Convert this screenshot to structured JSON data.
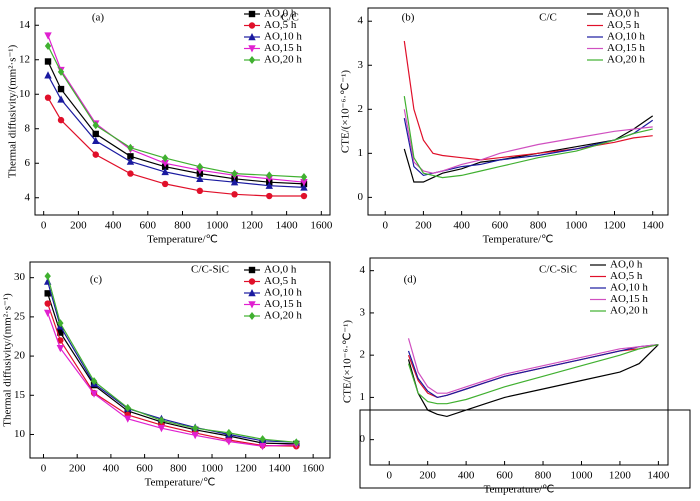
{
  "chart_data": [
    {
      "type": "line",
      "title": "C/C",
      "panel": "(a)",
      "xlabel": "Temperature/℃",
      "ylabel": "Thermal diffusivity/(mm²·s⁻¹)",
      "x": [
        25,
        100,
        300,
        500,
        700,
        900,
        1100,
        1300,
        1500
      ],
      "xlim": [
        -50,
        1650
      ],
      "xticks": [
        0,
        200,
        400,
        600,
        800,
        1000,
        1200,
        1400,
        1600
      ],
      "ylim": [
        3,
        15
      ],
      "yticks": [
        4,
        6,
        8,
        10,
        12,
        14
      ],
      "series": [
        {
          "name": "AO,0 h",
          "color": "#000000",
          "marker": "square",
          "values": [
            11.9,
            10.3,
            7.7,
            6.4,
            5.8,
            5.4,
            5.1,
            4.9,
            4.8
          ]
        },
        {
          "name": "AO,5 h",
          "color": "#e0102a",
          "marker": "circle",
          "values": [
            9.8,
            8.5,
            6.5,
            5.4,
            4.8,
            4.4,
            4.2,
            4.1,
            4.1
          ]
        },
        {
          "name": "AO,10 h",
          "color": "#1a1aa0",
          "marker": "triangle",
          "values": [
            11.1,
            9.7,
            7.3,
            6.1,
            5.5,
            5.1,
            4.9,
            4.7,
            4.6
          ]
        },
        {
          "name": "AO,15 h",
          "color": "#e020d0",
          "marker": "triangle-down",
          "values": [
            13.4,
            11.4,
            8.3,
            6.8,
            6.0,
            5.6,
            5.3,
            5.1,
            4.9
          ]
        },
        {
          "name": "AO,20 h",
          "color": "#40b030",
          "marker": "diamond",
          "values": [
            12.8,
            11.3,
            8.2,
            6.9,
            6.3,
            5.8,
            5.4,
            5.3,
            5.2
          ]
        }
      ]
    },
    {
      "type": "line",
      "title": "C/C",
      "panel": "(b)",
      "xlabel": "Temperature/℃",
      "ylabel": "CTE/(×10⁻⁶·℃⁻¹)",
      "x": [
        100,
        150,
        200,
        250,
        300,
        400,
        500,
        600,
        800,
        1000,
        1200,
        1300,
        1400
      ],
      "xlim": [
        -90,
        1480
      ],
      "xticks": [
        0,
        200,
        400,
        600,
        800,
        1000,
        1200,
        1400
      ],
      "ylim": [
        -0.4,
        4.3
      ],
      "yticks": [
        0,
        1,
        2,
        3,
        4
      ],
      "series": [
        {
          "name": "AO,0 h",
          "color": "#000000",
          "values": [
            1.1,
            0.35,
            0.35,
            0.45,
            0.55,
            0.65,
            0.8,
            0.85,
            1.0,
            1.15,
            1.3,
            1.55,
            1.85
          ]
        },
        {
          "name": "AO,5 h",
          "color": "#e0102a",
          "values": [
            3.55,
            2.0,
            1.3,
            1.0,
            0.95,
            0.9,
            0.85,
            0.9,
            1.0,
            1.1,
            1.25,
            1.35,
            1.4
          ]
        },
        {
          "name": "AO,10 h",
          "color": "#1a1aa0",
          "values": [
            1.8,
            0.7,
            0.5,
            0.55,
            0.6,
            0.7,
            0.75,
            0.85,
            0.95,
            1.1,
            1.3,
            1.45,
            1.75
          ]
        },
        {
          "name": "AO,15 h",
          "color": "#d050c0",
          "values": [
            2.0,
            0.8,
            0.6,
            0.55,
            0.6,
            0.75,
            0.85,
            1.0,
            1.2,
            1.35,
            1.5,
            1.55,
            1.6
          ]
        },
        {
          "name": "AO,20 h",
          "color": "#40b030",
          "values": [
            2.3,
            0.9,
            0.55,
            0.5,
            0.45,
            0.5,
            0.6,
            0.7,
            0.9,
            1.05,
            1.3,
            1.45,
            1.55
          ]
        }
      ]
    },
    {
      "type": "line",
      "title": "C/C-SiC",
      "panel": "(c)",
      "xlabel": "Temperature/℃",
      "ylabel": "Thermal diffusivity/(mm²·s⁻¹)",
      "x": [
        25,
        100,
        300,
        500,
        700,
        900,
        1100,
        1300,
        1500
      ],
      "xlim": [
        -80,
        1700
      ],
      "xticks": [
        0,
        200,
        400,
        600,
        800,
        1000,
        1200,
        1400,
        1600
      ],
      "ylim": [
        7,
        32
      ],
      "yticks": [
        10,
        15,
        20,
        25,
        30
      ],
      "series": [
        {
          "name": "AO,0 h",
          "color": "#000000",
          "marker": "square",
          "values": [
            28.0,
            23.0,
            16.3,
            13.0,
            11.6,
            10.6,
            9.8,
            8.9,
            8.8
          ]
        },
        {
          "name": "AO,5 h",
          "color": "#e0102a",
          "marker": "circle",
          "values": [
            26.7,
            22.0,
            15.3,
            12.5,
            11.2,
            10.2,
            9.3,
            8.6,
            8.5
          ]
        },
        {
          "name": "AO,10 h",
          "color": "#1a1aa0",
          "marker": "triangle",
          "values": [
            29.5,
            23.8,
            16.5,
            13.3,
            12.0,
            10.9,
            10.0,
            9.2,
            9.0
          ]
        },
        {
          "name": "AO,15 h",
          "color": "#e020d0",
          "marker": "triangle-down",
          "values": [
            25.5,
            21.0,
            15.2,
            12.0,
            10.8,
            9.9,
            9.1,
            8.5,
            8.7
          ]
        },
        {
          "name": "AO,20 h",
          "color": "#40b030",
          "marker": "diamond",
          "values": [
            30.2,
            24.2,
            16.8,
            13.4,
            11.8,
            10.8,
            10.2,
            9.4,
            9.0
          ]
        }
      ]
    },
    {
      "type": "line",
      "title": "C/C-SiC",
      "panel": "(d)",
      "xlabel": "Temperature/℃",
      "ylabel": "CTE/(×10⁻⁶·℃⁻¹)",
      "x": [
        100,
        150,
        200,
        250,
        300,
        400,
        500,
        600,
        800,
        1000,
        1200,
        1300,
        1400
      ],
      "xlim": [
        -100,
        1450
      ],
      "xticks": [
        0,
        200,
        400,
        600,
        800,
        1000,
        1200,
        1400
      ],
      "ylim": [
        -0.6,
        4.3
      ],
      "yticks": [
        0,
        1,
        2,
        3,
        4
      ],
      "series": [
        {
          "name": "AO,0 h",
          "color": "#000000",
          "values": [
            1.9,
            1.1,
            0.7,
            0.6,
            0.55,
            0.7,
            0.85,
            1.0,
            1.2,
            1.4,
            1.6,
            1.8,
            2.25
          ]
        },
        {
          "name": "AO,5 h",
          "color": "#e0102a",
          "values": [
            2.0,
            1.4,
            1.1,
            1.0,
            1.05,
            1.2,
            1.35,
            1.5,
            1.7,
            1.9,
            2.1,
            2.15,
            2.25
          ]
        },
        {
          "name": "AO,10 h",
          "color": "#1a1aa0",
          "values": [
            2.1,
            1.45,
            1.15,
            1.0,
            1.05,
            1.2,
            1.35,
            1.5,
            1.7,
            1.9,
            2.1,
            2.2,
            2.25
          ]
        },
        {
          "name": "AO,15 h",
          "color": "#d050c0",
          "values": [
            2.4,
            1.6,
            1.25,
            1.1,
            1.1,
            1.25,
            1.4,
            1.55,
            1.75,
            1.95,
            2.15,
            2.2,
            2.25
          ]
        },
        {
          "name": "AO,20 h",
          "color": "#40b030",
          "values": [
            1.8,
            1.1,
            0.9,
            0.85,
            0.85,
            0.95,
            1.1,
            1.25,
            1.5,
            1.75,
            2.0,
            2.15,
            2.25
          ]
        }
      ]
    }
  ]
}
